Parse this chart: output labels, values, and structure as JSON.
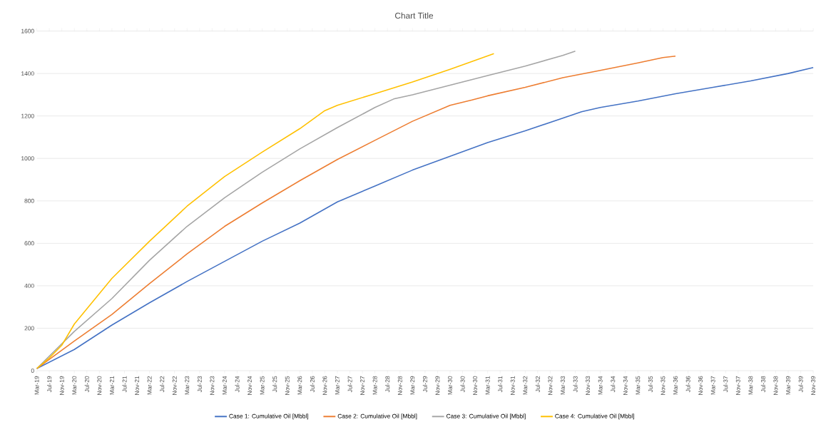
{
  "chart_data": {
    "type": "line",
    "title": "Chart Title",
    "xlim": [
      "2019-03",
      "2039-11"
    ],
    "ylim": [
      0,
      1600
    ],
    "yticks": [
      0,
      200,
      400,
      600,
      800,
      1000,
      1200,
      1400,
      1600
    ],
    "xticks": [
      {
        "value": "2019-03",
        "label": "Mar-19"
      },
      {
        "value": "2019-07",
        "label": "Jul-19"
      },
      {
        "value": "2019-11",
        "label": "Nov-19"
      },
      {
        "value": "2020-03",
        "label": "Mar-20"
      },
      {
        "value": "2020-07",
        "label": "Jul-20"
      },
      {
        "value": "2020-11",
        "label": "Nov-20"
      },
      {
        "value": "2021-03",
        "label": "Mar-21"
      },
      {
        "value": "2021-07",
        "label": "Jul-21"
      },
      {
        "value": "2021-11",
        "label": "Nov-21"
      },
      {
        "value": "2022-03",
        "label": "Mar-22"
      },
      {
        "value": "2022-07",
        "label": "Jul-22"
      },
      {
        "value": "2022-11",
        "label": "Nov-22"
      },
      {
        "value": "2023-03",
        "label": "Mar-23"
      },
      {
        "value": "2023-07",
        "label": "Jul-23"
      },
      {
        "value": "2023-11",
        "label": "Nov-23"
      },
      {
        "value": "2024-03",
        "label": "Mar-24"
      },
      {
        "value": "2024-07",
        "label": "Jul-24"
      },
      {
        "value": "2024-11",
        "label": "Nov-24"
      },
      {
        "value": "2025-03",
        "label": "Mar-25"
      },
      {
        "value": "2025-07",
        "label": "Jul-25"
      },
      {
        "value": "2025-11",
        "label": "Nov-25"
      },
      {
        "value": "2026-03",
        "label": "Mar-26"
      },
      {
        "value": "2026-07",
        "label": "Jul-26"
      },
      {
        "value": "2026-11",
        "label": "Nov-26"
      },
      {
        "value": "2027-03",
        "label": "Mar-27"
      },
      {
        "value": "2027-07",
        "label": "Jul-27"
      },
      {
        "value": "2027-11",
        "label": "Nov-27"
      },
      {
        "value": "2028-03",
        "label": "Mar-28"
      },
      {
        "value": "2028-07",
        "label": "Jul-28"
      },
      {
        "value": "2028-11",
        "label": "Nov-28"
      },
      {
        "value": "2029-03",
        "label": "Mar-29"
      },
      {
        "value": "2029-07",
        "label": "Jul-29"
      },
      {
        "value": "2029-11",
        "label": "Nov-29"
      },
      {
        "value": "2030-03",
        "label": "Mar-30"
      },
      {
        "value": "2030-07",
        "label": "Jul-30"
      },
      {
        "value": "2030-11",
        "label": "Nov-30"
      },
      {
        "value": "2031-03",
        "label": "Mar-31"
      },
      {
        "value": "2031-07",
        "label": "Jul-31"
      },
      {
        "value": "2031-11",
        "label": "Nov-31"
      },
      {
        "value": "2032-03",
        "label": "Mar-32"
      },
      {
        "value": "2032-07",
        "label": "Jul-32"
      },
      {
        "value": "2032-11",
        "label": "Nov-32"
      },
      {
        "value": "2033-03",
        "label": "Mar-33"
      },
      {
        "value": "2033-07",
        "label": "Jul-33"
      },
      {
        "value": "2033-11",
        "label": "Nov-33"
      },
      {
        "value": "2034-03",
        "label": "Mar-34"
      },
      {
        "value": "2034-07",
        "label": "Jul-34"
      },
      {
        "value": "2034-11",
        "label": "Nov-34"
      },
      {
        "value": "2035-03",
        "label": "Mar-35"
      },
      {
        "value": "2035-07",
        "label": "Jul-35"
      },
      {
        "value": "2035-11",
        "label": "Nov-35"
      },
      {
        "value": "2036-03",
        "label": "Mar-36"
      },
      {
        "value": "2036-07",
        "label": "Jul-36"
      },
      {
        "value": "2036-11",
        "label": "Nov-36"
      },
      {
        "value": "2037-03",
        "label": "Mar-37"
      },
      {
        "value": "2037-07",
        "label": "Jul-37"
      },
      {
        "value": "2037-11",
        "label": "Nov-37"
      },
      {
        "value": "2038-03",
        "label": "Mar-38"
      },
      {
        "value": "2038-07",
        "label": "Jul-38"
      },
      {
        "value": "2038-11",
        "label": "Nov-38"
      },
      {
        "value": "2039-03",
        "label": "Mar-39"
      },
      {
        "value": "2039-07",
        "label": "Jul-39"
      },
      {
        "value": "2039-11",
        "label": "Nov-39"
      }
    ],
    "grid": "y",
    "legend": "bottom",
    "series": [
      {
        "name": "Case 1: Cumulative Oil [Mbbl]",
        "color": "#4472c4",
        "x": [
          "2019-03",
          "2019-11",
          "2020-03",
          "2021-03",
          "2022-03",
          "2023-03",
          "2024-03",
          "2025-03",
          "2026-03",
          "2027-03",
          "2028-03",
          "2029-03",
          "2030-03",
          "2031-03",
          "2032-03",
          "2033-03",
          "2033-09",
          "2034-03",
          "2035-03",
          "2036-03",
          "2037-03",
          "2038-03",
          "2039-03",
          "2039-11"
        ],
        "values": [
          10,
          70,
          100,
          215,
          320,
          420,
          515,
          610,
          695,
          795,
          870,
          945,
          1010,
          1075,
          1130,
          1190,
          1220,
          1240,
          1270,
          1305,
          1335,
          1365,
          1400,
          1428
        ]
      },
      {
        "name": "Case 2: Cumulative Oil [Mbbl]",
        "color": "#ed7d31",
        "x": [
          "2019-03",
          "2020-03",
          "2021-03",
          "2022-03",
          "2023-03",
          "2024-03",
          "2025-03",
          "2026-03",
          "2027-03",
          "2028-03",
          "2029-03",
          "2030-03",
          "2030-10",
          "2031-03",
          "2032-03",
          "2033-03",
          "2034-03",
          "2035-03",
          "2035-11",
          "2036-03"
        ],
        "values": [
          10,
          140,
          265,
          410,
          550,
          680,
          790,
          895,
          995,
          1085,
          1175,
          1250,
          1275,
          1295,
          1335,
          1380,
          1415,
          1450,
          1475,
          1482
        ]
      },
      {
        "name": "Case 3: Cumulative Oil [Mbbl]",
        "color": "#a5a5a5",
        "x": [
          "2019-03",
          "2020-03",
          "2021-03",
          "2022-03",
          "2023-03",
          "2024-03",
          "2025-03",
          "2026-03",
          "2027-03",
          "2028-03",
          "2028-09",
          "2029-03",
          "2030-03",
          "2031-03",
          "2032-03",
          "2033-03",
          "2033-07"
        ],
        "values": [
          10,
          185,
          340,
          520,
          680,
          815,
          935,
          1045,
          1145,
          1240,
          1280,
          1300,
          1345,
          1390,
          1435,
          1485,
          1505
        ]
      },
      {
        "name": "Case 4: Cumulative Oil [Mbbl]",
        "color": "#ffc000",
        "x": [
          "2019-03",
          "2019-07",
          "2019-11",
          "2020-03",
          "2021-03",
          "2022-03",
          "2023-03",
          "2024-03",
          "2025-03",
          "2026-03",
          "2026-11",
          "2027-03",
          "2028-03",
          "2029-03",
          "2030-03",
          "2031-05"
        ],
        "values": [
          10,
          60,
          120,
          220,
          435,
          610,
          775,
          915,
          1030,
          1140,
          1225,
          1250,
          1305,
          1360,
          1420,
          1494
        ]
      }
    ]
  }
}
